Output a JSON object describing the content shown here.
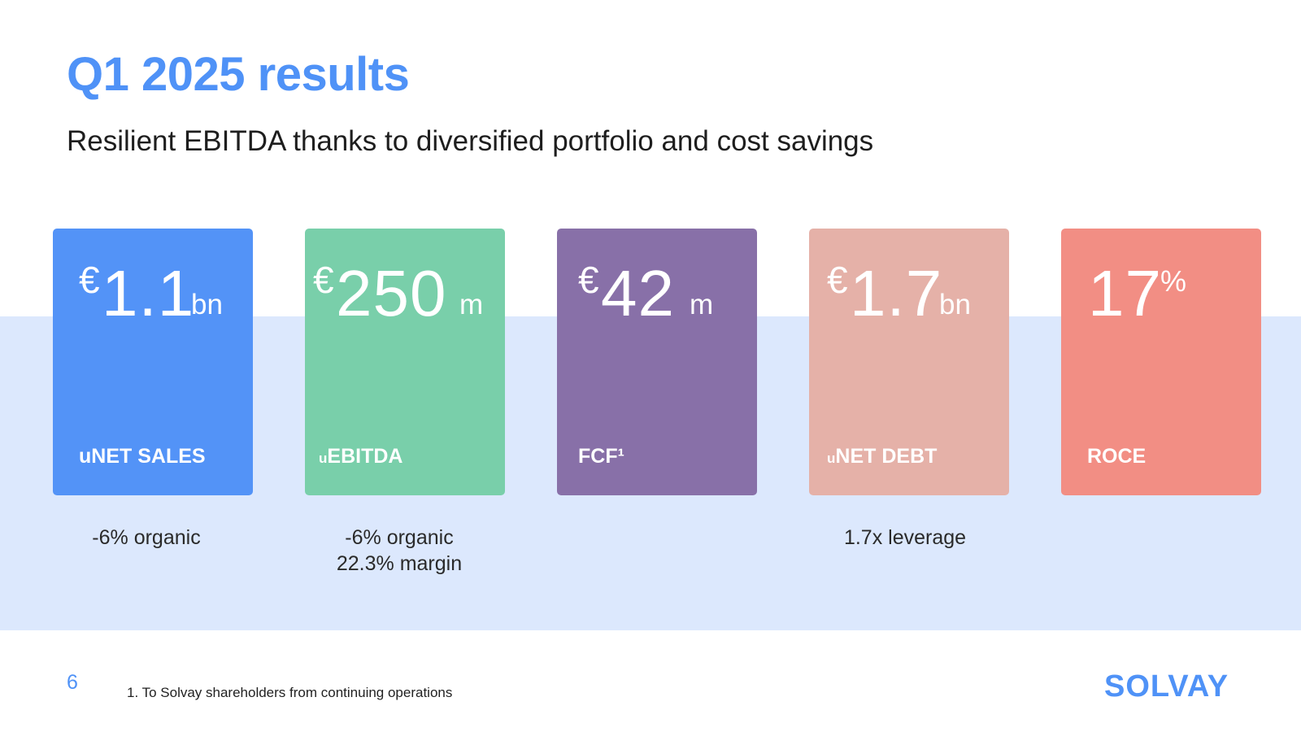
{
  "header": {
    "title": "Q1 2025 results",
    "subtitle": "Resilient EBITDA thanks to diversified portfolio and cost savings"
  },
  "colors": {
    "title": "#4f92f7",
    "band": "#dce8fd",
    "net_sales": "#5393f7",
    "ebitda": "#79cfaa",
    "fcf": "#8870a8",
    "net_debt": "#e5b1a8",
    "roce": "#f28e84"
  },
  "cards": [
    {
      "currency": "€",
      "value": "1.1",
      "unit": "bn",
      "label_prefix": "u",
      "label_main": "NET SALES",
      "note_lines": [
        "-6% organic"
      ]
    },
    {
      "currency": "€",
      "value": "250",
      "unit": "m",
      "label_prefix": "u",
      "label_main": "EBITDA",
      "note_lines": [
        "-6% organic",
        "22.3% margin"
      ]
    },
    {
      "currency": "€",
      "value": "42",
      "unit": "m",
      "label_prefix": "",
      "label_main": "FCF¹",
      "note_lines": []
    },
    {
      "currency": "€",
      "value": "1.7",
      "unit": "bn",
      "label_prefix": "u",
      "label_main": "NET DEBT",
      "note_lines": [
        "1.7x leverage"
      ]
    },
    {
      "currency": "",
      "value": "17",
      "unit": "%",
      "label_prefix": "",
      "label_main": "ROCE",
      "note_lines": []
    }
  ],
  "footer": {
    "page_number": "6",
    "footnote": "1. To Solvay shareholders from continuing operations",
    "logo_text": "SOLVAY"
  }
}
